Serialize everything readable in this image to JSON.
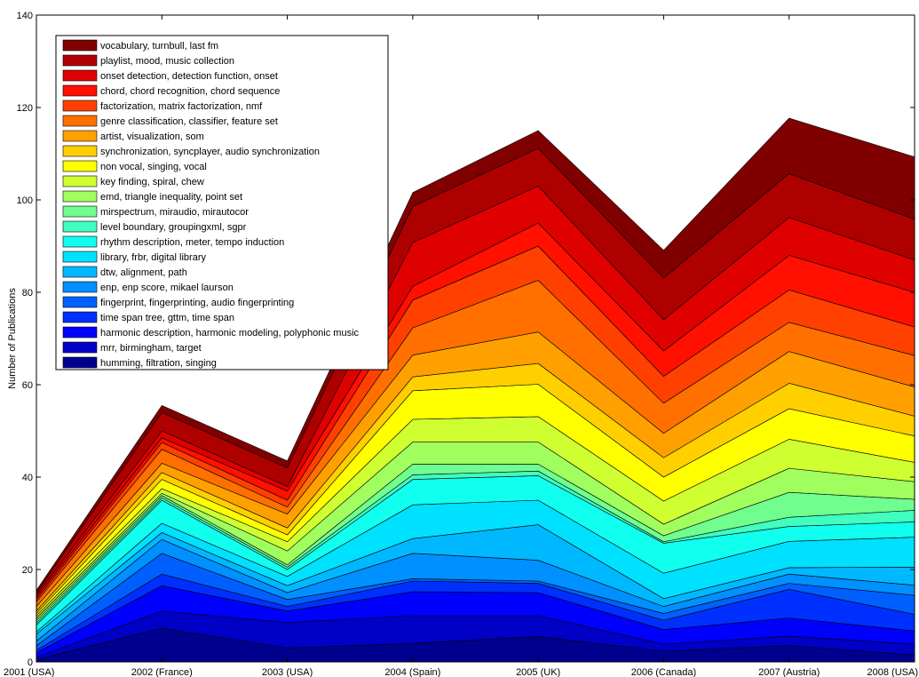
{
  "chart_data": {
    "type": "area",
    "stacked": true,
    "title": "",
    "xlabel": "",
    "ylabel": "Number of Publications",
    "ylim": [
      0,
      140
    ],
    "yticks": [
      0,
      20,
      40,
      60,
      80,
      100,
      120,
      140
    ],
    "categories": [
      "2001 (USA)",
      "2002 (France)",
      "2003 (USA)",
      "2004 (Spain)",
      "2005 (UK)",
      "2006 (Canada)",
      "2007 (Austria)",
      "2008 (USA)"
    ],
    "grid": false,
    "legend_position": "top-left",
    "series": [
      {
        "name": "humming, filtration, singing",
        "color": "#00008F",
        "values": [
          0.5,
          7.3,
          3.0,
          4.0,
          5.5,
          2.3,
          3.5,
          1.5
        ]
      },
      {
        "name": "mrr, birmingham, target",
        "color": "#0000C7",
        "values": [
          0.5,
          3.7,
          5.5,
          6.0,
          4.5,
          1.5,
          2.1,
          2.3
        ]
      },
      {
        "name": "harmonic description, harmonic modeling, polyphonic music",
        "color": "#0000FF",
        "values": [
          1.0,
          5.5,
          2.5,
          5.2,
          5.0,
          3.2,
          3.9,
          2.9
        ]
      },
      {
        "name": "time span tree, gttm, time span",
        "color": "#0030FF",
        "values": [
          0.5,
          2.5,
          1.0,
          2.3,
          2.0,
          2.0,
          6.2,
          3.6
        ]
      },
      {
        "name": "fingerprint, fingerprinting, audio fingerprinting",
        "color": "#0060FF",
        "values": [
          1.0,
          4.5,
          1.5,
          0.5,
          0.5,
          1.5,
          1.3,
          4.1
        ]
      },
      {
        "name": "enp, enp score, mikael laurson",
        "color": "#0090FF",
        "values": [
          1.0,
          3.0,
          1.5,
          5.5,
          4.5,
          1.5,
          2.0,
          2.2
        ]
      },
      {
        "name": "dtw, alignment, path",
        "color": "#00B8FF",
        "values": [
          1.5,
          1.5,
          1.5,
          3.2,
          7.7,
          1.7,
          1.4,
          3.9
        ]
      },
      {
        "name": "library, frbr, digital library",
        "color": "#00E0FF",
        "values": [
          0.5,
          2.0,
          2.0,
          7.3,
          5.3,
          5.5,
          5.7,
          6.5
        ]
      },
      {
        "name": "rhythm description, meter, tempo induction",
        "color": "#10FFEF",
        "values": [
          1.5,
          5.0,
          1.5,
          5.5,
          5.3,
          6.5,
          3.2,
          3.3
        ]
      },
      {
        "name": "level boundary, groupingxml, sgpr",
        "color": "#40FFBF",
        "values": [
          0.5,
          0.5,
          0.5,
          1.0,
          1.0,
          0.3,
          2.0,
          2.5
        ]
      },
      {
        "name": "mirspectrum, miraudio, mirautocor",
        "color": "#70FF8F",
        "values": [
          0.5,
          0.5,
          0.5,
          2.3,
          1.5,
          1.3,
          5.4,
          2.4
        ]
      },
      {
        "name": "emd, triangle inequality, point set",
        "color": "#A0FF5F",
        "values": [
          0.5,
          0.5,
          3.0,
          4.8,
          4.8,
          2.5,
          5.2,
          3.8
        ]
      },
      {
        "name": "key finding, spiral, chew",
        "color": "#CFFF30",
        "values": [
          0.5,
          1.0,
          2.0,
          4.9,
          5.5,
          5.0,
          6.3,
          4.2
        ]
      },
      {
        "name": "non vocal, singing, vocal",
        "color": "#FFFF00",
        "values": [
          0.5,
          2.0,
          1.5,
          6.2,
          7.0,
          5.2,
          6.6,
          5.7
        ]
      },
      {
        "name": "synchronization, syncplayer, audio synchronization",
        "color": "#FFCF00",
        "values": [
          0.5,
          1.5,
          1.5,
          3.0,
          4.5,
          4.2,
          5.5,
          4.3
        ]
      },
      {
        "name": "artist, visualization, som",
        "color": "#FFA000",
        "values": [
          1.0,
          2.0,
          3.0,
          4.7,
          6.8,
          5.3,
          6.9,
          6.3
        ]
      },
      {
        "name": "genre classification, classifier, feature set",
        "color": "#FF7000",
        "values": [
          1.0,
          3.0,
          1.5,
          5.9,
          11.2,
          6.5,
          6.3,
          6.8
        ]
      },
      {
        "name": "factorization, matrix factorization, nmf",
        "color": "#FF4000",
        "values": [
          0.5,
          1.5,
          1.5,
          6.0,
          7.4,
          5.8,
          7.0,
          6.2
        ]
      },
      {
        "name": "chord, chord recognition, chord sequence",
        "color": "#FF1000",
        "values": [
          0.5,
          1.0,
          2.0,
          3.0,
          5.0,
          5.5,
          7.5,
          7.5
        ]
      },
      {
        "name": "onset detection, detection function, onset",
        "color": "#DF0000",
        "values": [
          0.5,
          1.5,
          1.0,
          9.5,
          8.0,
          6.8,
          8.2,
          7.0
        ]
      },
      {
        "name": "playlist, mood, music collection",
        "color": "#AF0000",
        "values": [
          0.5,
          4.0,
          4.0,
          7.8,
          8.2,
          9.0,
          9.5,
          8.8
        ]
      },
      {
        "name": "vocabulary, turnbull, last fm",
        "color": "#800000",
        "values": [
          0.5,
          1.5,
          1.5,
          3.0,
          3.8,
          6.0,
          12.0,
          13.5
        ]
      }
    ]
  }
}
